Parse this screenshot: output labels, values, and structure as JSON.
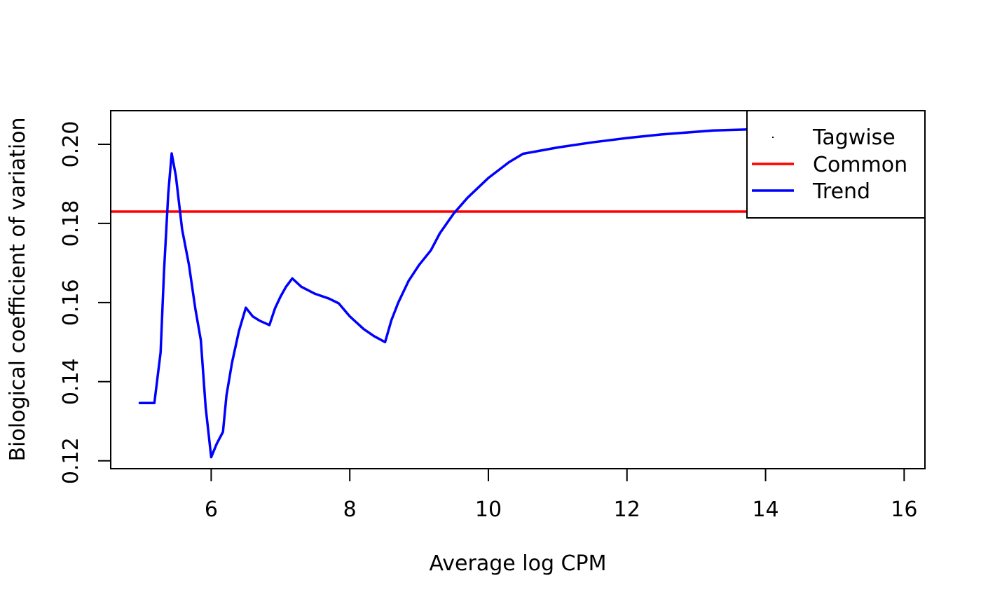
{
  "chart_data": {
    "type": "line",
    "title": "",
    "xlabel": "Average log CPM",
    "ylabel": "Biological coefficient of variation",
    "xlim": [
      4.55,
      16.3
    ],
    "ylim": [
      0.118,
      0.2085
    ],
    "xticks": [
      6,
      8,
      10,
      12,
      14,
      16
    ],
    "xtick_labels": [
      "6",
      "8",
      "10",
      "12",
      "14",
      "16"
    ],
    "yticks": [
      0.12,
      0.14,
      0.16,
      0.18,
      0.2
    ],
    "ytick_labels": [
      "0.12",
      "0.14",
      "0.16",
      "0.18",
      "0.20"
    ],
    "grid": false,
    "legend": {
      "position": "top-right",
      "entries": [
        {
          "label": "Tagwise",
          "style": "point",
          "color": "#000000"
        },
        {
          "label": "Common",
          "style": "line",
          "color": "#ff0000"
        },
        {
          "label": "Trend",
          "style": "line",
          "color": "#0000ff"
        }
      ]
    },
    "series": [
      {
        "name": "Common",
        "kind": "hline",
        "color": "#ff0000",
        "y": 0.183
      },
      {
        "name": "Trend",
        "kind": "line",
        "color": "#0000ff",
        "x": [
          4.97,
          5.18,
          5.27,
          5.32,
          5.38,
          5.43,
          5.49,
          5.58,
          5.68,
          5.77,
          5.85,
          5.92,
          6.0,
          6.08,
          6.17,
          6.22,
          6.3,
          6.4,
          6.5,
          6.6,
          6.7,
          6.84,
          6.92,
          7.0,
          7.08,
          7.17,
          7.3,
          7.5,
          7.7,
          7.84,
          8.0,
          8.2,
          8.35,
          8.51,
          8.6,
          8.7,
          8.85,
          9.0,
          9.17,
          9.3,
          9.5,
          9.7,
          10.0,
          10.3,
          10.5,
          11.0,
          11.5,
          12.0,
          12.5,
          13.25,
          14.0,
          14.5,
          15.0,
          15.5,
          15.83
        ],
        "y": [
          0.1346,
          0.1346,
          0.1474,
          0.168,
          0.1875,
          0.1977,
          0.192,
          0.1785,
          0.1695,
          0.1585,
          0.1505,
          0.1335,
          0.1209,
          0.1243,
          0.1273,
          0.1365,
          0.1448,
          0.1528,
          0.1587,
          0.1565,
          0.1554,
          0.1543,
          0.1585,
          0.1615,
          0.164,
          0.1661,
          0.164,
          0.1622,
          0.161,
          0.1598,
          0.1565,
          0.1533,
          0.1515,
          0.15,
          0.1555,
          0.16,
          0.1655,
          0.1695,
          0.1732,
          0.1775,
          0.1825,
          0.1865,
          0.1915,
          0.1955,
          0.1976,
          0.1992,
          0.2005,
          0.2016,
          0.2025,
          0.2035,
          0.2039,
          0.2042,
          0.2044,
          0.2046,
          0.2048
        ]
      }
    ]
  }
}
